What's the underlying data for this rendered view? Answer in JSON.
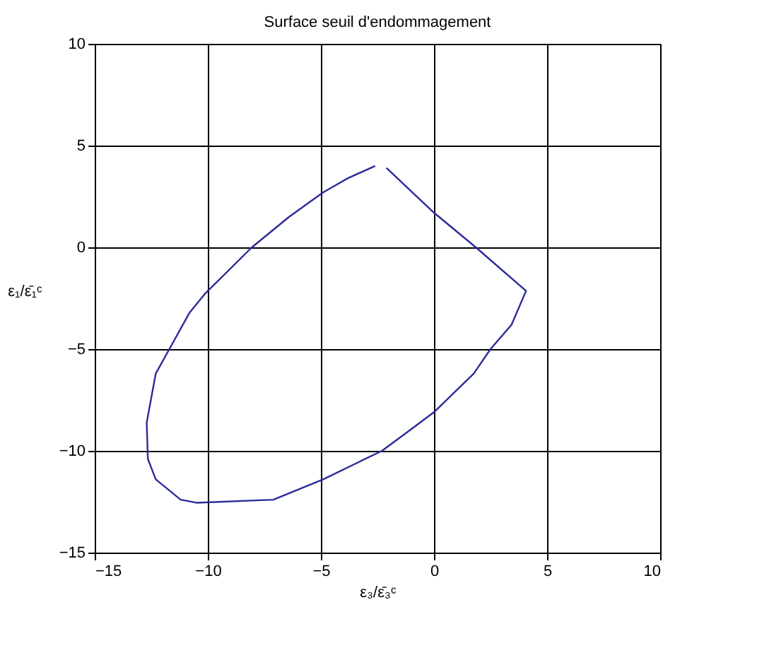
{
  "chart_data": {
    "type": "line",
    "title": "Surface seuil d'endommagement",
    "xlabel": "ε₃/ε̄₃ᶜ",
    "ylabel": "ε₁/ε̄₁ᶜ",
    "x": [
      -2.1,
      0,
      1.85,
      4.07,
      3.43,
      2.5,
      1.76,
      0.65,
      0,
      -1.2,
      -2.3,
      -4.9,
      -7.1,
      -10.5,
      -11.2,
      -12.3,
      -12.65,
      -12.7,
      -12.3,
      -11.7,
      -10.8,
      -10.1,
      -8.05,
      -6.4,
      -4.9,
      -3.8,
      -2.6
    ],
    "values": [
      3.9,
      1.7,
      0,
      -2.14,
      -3.8,
      -5,
      -6.2,
      -7.4,
      -8.1,
      -9.1,
      -10,
      -11.4,
      -12.4,
      -12.55,
      -12.4,
      -11.4,
      -10.4,
      -8.6,
      -6.2,
      -5,
      -3.2,
      -2.25,
      0,
      1.5,
      2.7,
      3.4,
      4.0
    ],
    "color": "#2b2b99",
    "xlim": [
      -15,
      10
    ],
    "ylim": [
      -15,
      10
    ],
    "xticks": [
      -15,
      -10,
      -5,
      0,
      5,
      10
    ],
    "yticks": [
      -15,
      -10,
      -5,
      0,
      5,
      10
    ],
    "grid": true
  }
}
